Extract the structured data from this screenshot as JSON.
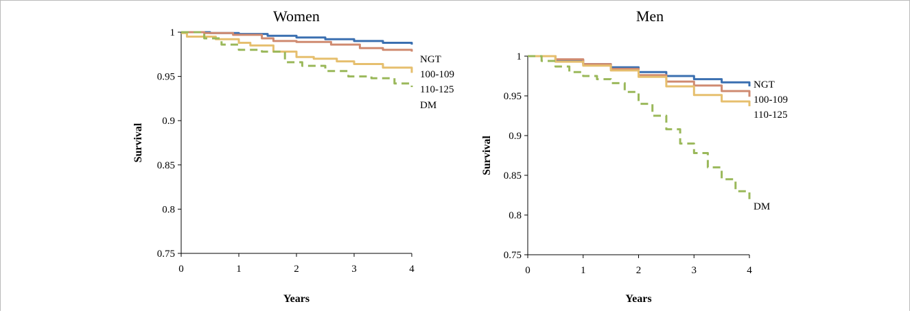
{
  "chart_data": [
    {
      "type": "line",
      "title": "Women",
      "xlabel": "Years",
      "ylabel": "Survival",
      "xlim": [
        0,
        4
      ],
      "ylim": [
        0.75,
        1
      ],
      "x_ticks": [
        "0",
        "1",
        "2",
        "3",
        "4"
      ],
      "y_ticks": [
        "0.75",
        "0.8",
        "0.85",
        "0.9",
        "0.95",
        "1"
      ],
      "grid": false,
      "legend": "inline labels at line ends",
      "series": [
        {
          "name": "NGT",
          "color": "#3a6fb0",
          "style": "solid",
          "x": [
            0,
            0.5,
            1.0,
            1.5,
            2.0,
            2.5,
            3.0,
            3.5,
            4.0
          ],
          "values": [
            1.0,
            0.999,
            0.998,
            0.996,
            0.994,
            0.992,
            0.99,
            0.988,
            0.986
          ]
        },
        {
          "name": "100-109",
          "color": "#cf8a70",
          "style": "solid",
          "x": [
            0,
            0.4,
            0.9,
            1.4,
            1.6,
            2.0,
            2.6,
            3.1,
            3.5,
            4.0
          ],
          "values": [
            1.0,
            0.999,
            0.997,
            0.993,
            0.99,
            0.989,
            0.986,
            0.982,
            0.98,
            0.978
          ]
        },
        {
          "name": "110-125",
          "color": "#e6bf6e",
          "style": "solid",
          "x": [
            0,
            0.1,
            0.6,
            1.0,
            1.2,
            1.6,
            2.0,
            2.3,
            2.7,
            3.0,
            3.5,
            4.0
          ],
          "values": [
            0.999,
            0.995,
            0.992,
            0.988,
            0.985,
            0.978,
            0.972,
            0.97,
            0.967,
            0.964,
            0.96,
            0.954
          ]
        },
        {
          "name": "DM",
          "color": "#9ab85a",
          "style": "dashed",
          "x": [
            0,
            0.4,
            0.7,
            1.0,
            1.4,
            1.8,
            2.1,
            2.5,
            2.9,
            3.3,
            3.7,
            4.0
          ],
          "values": [
            1.0,
            0.993,
            0.986,
            0.98,
            0.978,
            0.966,
            0.962,
            0.956,
            0.95,
            0.948,
            0.942,
            0.938
          ]
        }
      ]
    },
    {
      "type": "line",
      "title": "Men",
      "xlabel": "Years",
      "ylabel": "Survival",
      "xlim": [
        0,
        4
      ],
      "ylim": [
        0.75,
        1
      ],
      "x_ticks": [
        "0",
        "1",
        "2",
        "3",
        "4"
      ],
      "y_ticks": [
        "0.75",
        "0.8",
        "0.85",
        "0.9",
        "0.95",
        "1"
      ],
      "grid": false,
      "legend": "inline labels at line ends",
      "series": [
        {
          "name": "NGT",
          "color": "#3a6fb0",
          "style": "solid",
          "x": [
            0,
            0.5,
            1.0,
            1.5,
            2.0,
            2.5,
            3.0,
            3.5,
            4.0
          ],
          "values": [
            1.0,
            0.995,
            0.99,
            0.986,
            0.98,
            0.975,
            0.971,
            0.967,
            0.962
          ]
        },
        {
          "name": "100-109",
          "color": "#cf8a70",
          "style": "solid",
          "x": [
            0,
            0.5,
            1.0,
            1.5,
            2.0,
            2.5,
            3.0,
            3.5,
            4.0
          ],
          "values": [
            1.0,
            0.996,
            0.99,
            0.984,
            0.976,
            0.968,
            0.963,
            0.956,
            0.949
          ]
        },
        {
          "name": "110-125",
          "color": "#e6bf6e",
          "style": "solid",
          "x": [
            0,
            0.5,
            1.0,
            1.5,
            2.0,
            2.5,
            3.0,
            3.5,
            4.0
          ],
          "values": [
            1.0,
            0.993,
            0.988,
            0.982,
            0.974,
            0.962,
            0.951,
            0.943,
            0.937
          ]
        },
        {
          "name": "DM",
          "color": "#9ab85a",
          "style": "dashed",
          "x": [
            0,
            0.25,
            0.5,
            0.75,
            1.0,
            1.25,
            1.5,
            1.75,
            2.0,
            2.25,
            2.5,
            2.75,
            3.0,
            3.25,
            3.5,
            3.75,
            4.0
          ],
          "values": [
            1.0,
            0.994,
            0.987,
            0.98,
            0.975,
            0.971,
            0.966,
            0.955,
            0.94,
            0.925,
            0.908,
            0.89,
            0.878,
            0.86,
            0.845,
            0.83,
            0.82
          ]
        }
      ]
    }
  ]
}
